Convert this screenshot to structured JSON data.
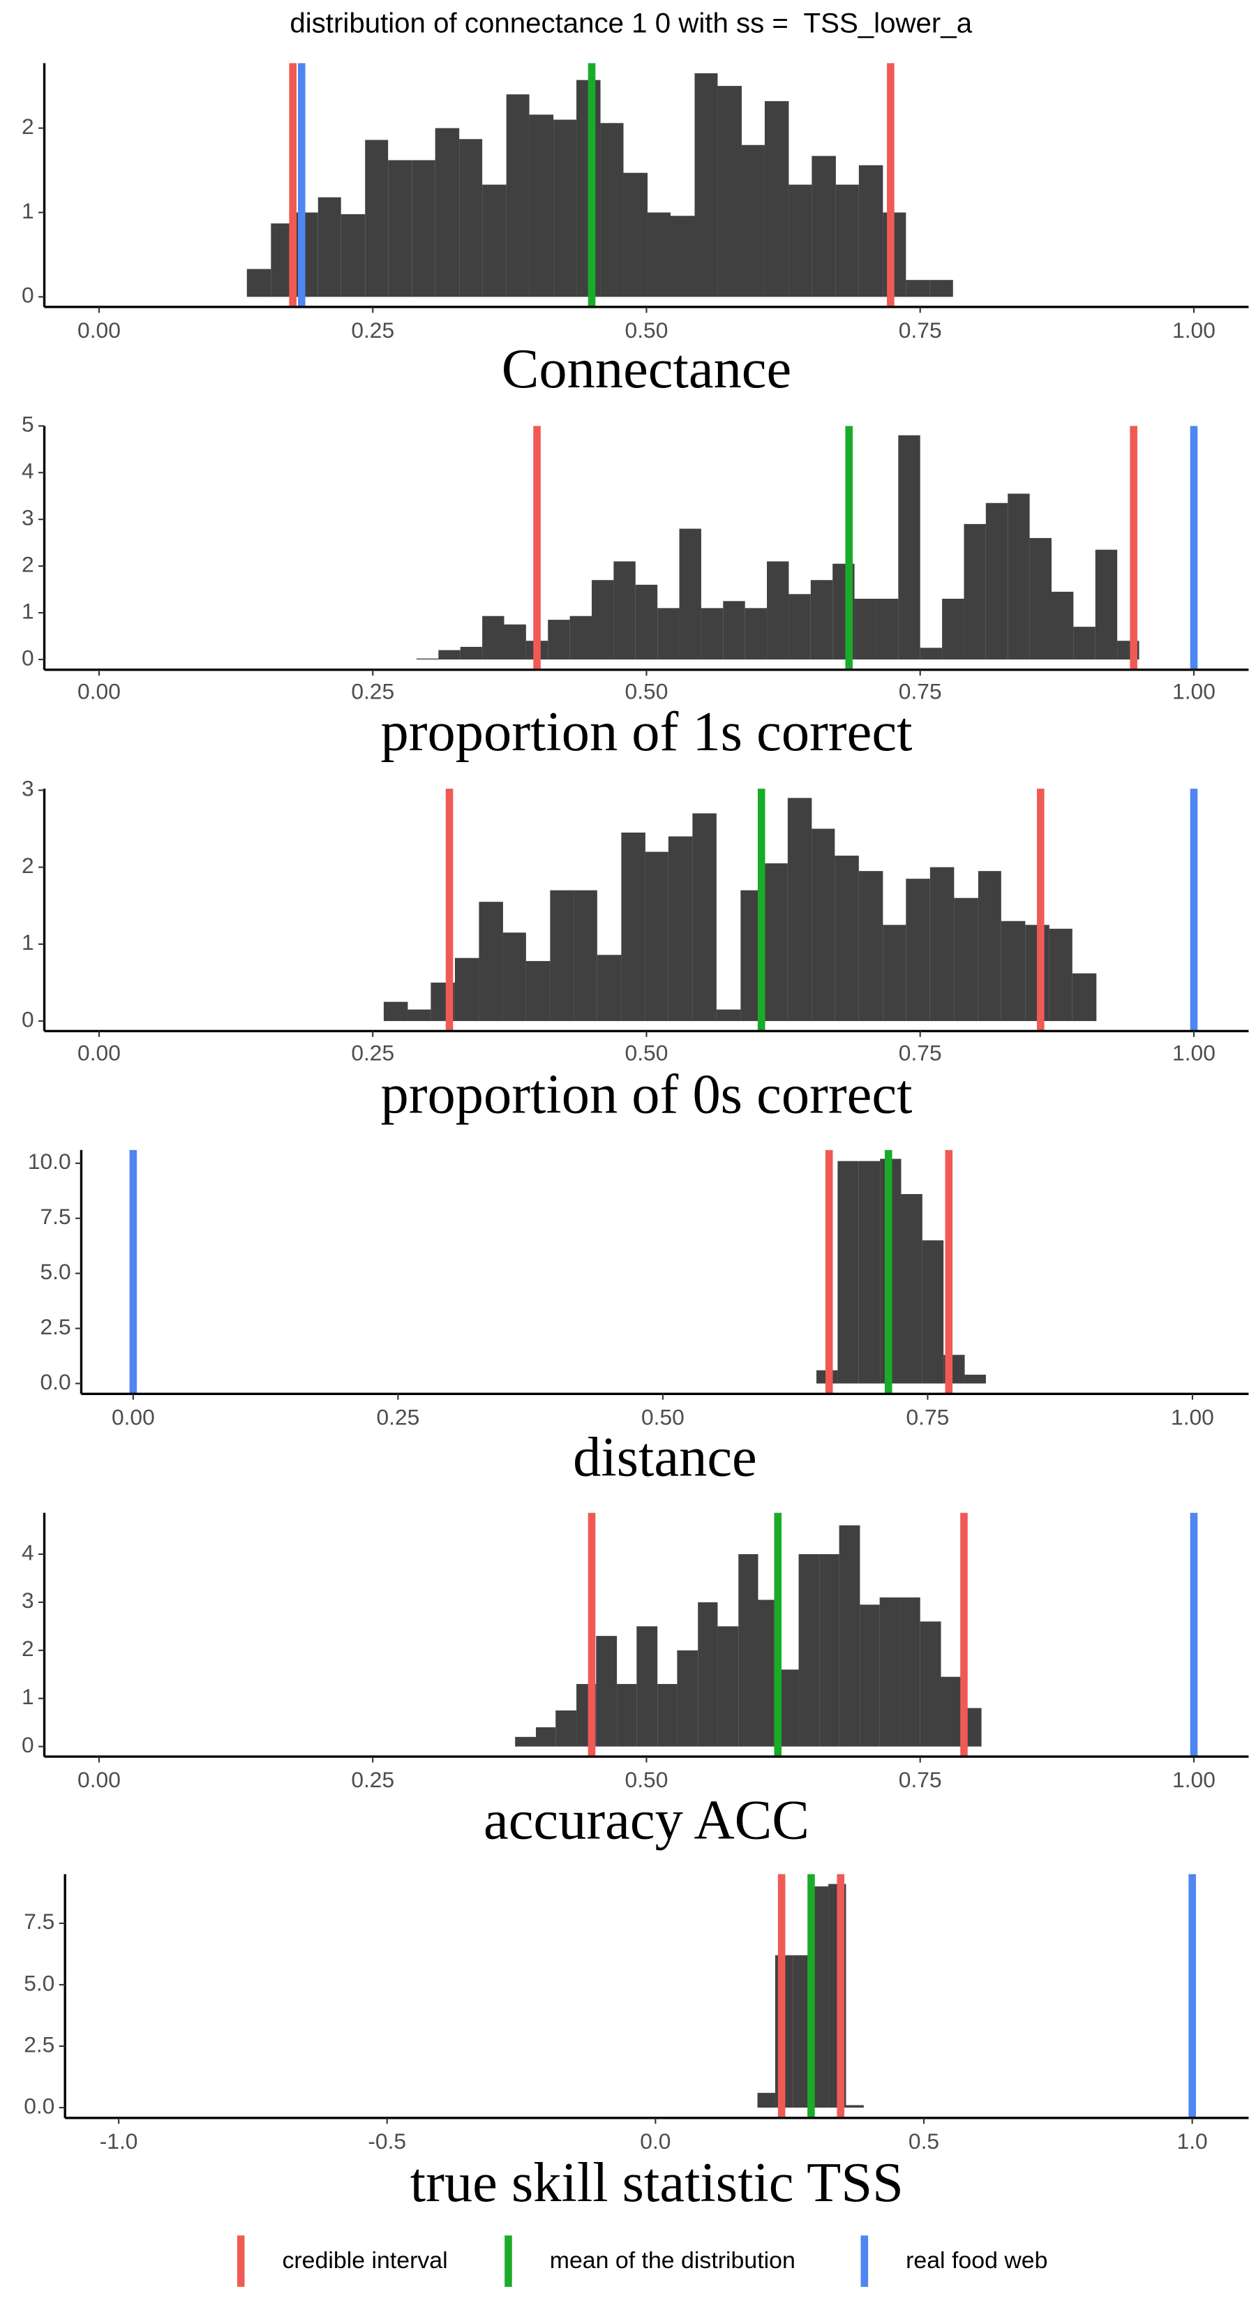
{
  "title": "distribution of connectance 1 0 with ss =  TSS_lower_a",
  "chart_data": [
    {
      "type": "histogram",
      "xlabel": "Connectance",
      "bins": [
        0.135,
        0.157,
        0.178,
        0.2,
        0.221,
        0.243,
        0.264,
        0.286,
        0.307,
        0.329,
        0.35,
        0.372,
        0.393,
        0.415,
        0.436,
        0.458,
        0.479,
        0.501,
        0.522,
        0.544,
        0.565,
        0.587,
        0.608,
        0.63,
        0.651,
        0.673,
        0.694,
        0.716,
        0.737,
        0.759,
        0.78
      ],
      "values": [
        0.33,
        0.87,
        1.0,
        1.18,
        0.98,
        1.86,
        1.62,
        1.62,
        2.0,
        1.87,
        1.33,
        2.4,
        2.16,
        2.1,
        2.57,
        2.06,
        1.47,
        1.0,
        0.96,
        2.65,
        2.5,
        1.8,
        2.32,
        1.33,
        1.67,
        1.33,
        1.56,
        1.0,
        0.2,
        0.2
      ],
      "color": "#404040",
      "xlim": [
        -0.05,
        1.05
      ],
      "ylim": [
        -0.12,
        2.77
      ],
      "xticks": [
        {
          "value": 0,
          "label": "0.00"
        },
        {
          "value": 0.25,
          "label": "0.25"
        },
        {
          "value": 0.5,
          "label": "0.50"
        },
        {
          "value": 0.75,
          "label": "0.75"
        },
        {
          "value": 1,
          "label": "1.00"
        }
      ],
      "yticks": [
        0,
        1,
        2
      ],
      "series": [
        {
          "name": "credible interval",
          "color": "#f05a55",
          "values": [
            0.177,
            0.723
          ]
        },
        {
          "name": "mean of the distribution",
          "color": "#1aab2a",
          "values": [
            0.45
          ]
        },
        {
          "name": "real food web",
          "color": "#4f86f0",
          "values": [
            0.185
          ]
        }
      ]
    },
    {
      "type": "histogram",
      "xlabel": "proportion of 1s correct",
      "bins": [
        0.29,
        0.31,
        0.33,
        0.35,
        0.37,
        0.39,
        0.41,
        0.43,
        0.45,
        0.47,
        0.49,
        0.51,
        0.53,
        0.55,
        0.57,
        0.59,
        0.61,
        0.63,
        0.65,
        0.67,
        0.69,
        0.71,
        0.73,
        0.75,
        0.77,
        0.79,
        0.81,
        0.83,
        0.85,
        0.87,
        0.89,
        0.91,
        0.93,
        0.95
      ],
      "values": [
        0.02,
        0.2,
        0.27,
        0.93,
        0.75,
        0.4,
        0.85,
        0.93,
        1.7,
        2.1,
        1.6,
        1.1,
        2.8,
        1.1,
        1.25,
        1.1,
        2.1,
        1.4,
        1.7,
        2.05,
        1.3,
        1.3,
        4.8,
        0.25,
        1.3,
        2.9,
        3.35,
        3.55,
        2.6,
        1.45,
        0.7,
        2.35,
        0.4
      ],
      "color": "#404040",
      "xlim": [
        -0.05,
        1.05
      ],
      "ylim": [
        -0.22,
        5.0
      ],
      "xticks": [
        {
          "value": 0,
          "label": "0.00"
        },
        {
          "value": 0.25,
          "label": "0.25"
        },
        {
          "value": 0.5,
          "label": "0.50"
        },
        {
          "value": 0.75,
          "label": "0.75"
        },
        {
          "value": 1,
          "label": "1.00"
        }
      ],
      "yticks": [
        0,
        1,
        2,
        3,
        4,
        5
      ],
      "series": [
        {
          "name": "credible interval",
          "color": "#f05a55",
          "values": [
            0.4,
            0.945
          ]
        },
        {
          "name": "mean of the distribution",
          "color": "#1aab2a",
          "values": [
            0.685
          ]
        },
        {
          "name": "real food web",
          "color": "#4f86f0",
          "values": [
            1.0
          ]
        }
      ]
    },
    {
      "type": "histogram",
      "xlabel": "proportion of 0s correct",
      "bins": [
        0.26,
        0.282,
        0.303,
        0.325,
        0.347,
        0.369,
        0.39,
        0.412,
        0.434,
        0.455,
        0.477,
        0.499,
        0.52,
        0.542,
        0.564,
        0.586,
        0.607,
        0.629,
        0.651,
        0.672,
        0.694,
        0.716,
        0.737,
        0.759,
        0.781,
        0.803,
        0.824,
        0.846,
        0.868,
        0.889,
        0.911
      ],
      "values": [
        0.25,
        0.15,
        0.5,
        0.82,
        1.55,
        1.15,
        0.78,
        1.7,
        1.7,
        0.86,
        2.45,
        2.2,
        2.4,
        2.7,
        0.15,
        1.7,
        2.05,
        2.9,
        2.5,
        2.15,
        1.95,
        1.25,
        1.85,
        2.0,
        1.6,
        1.95,
        1.3,
        1.25,
        1.2,
        0.62
      ],
      "color": "#404040",
      "xlim": [
        -0.05,
        1.05
      ],
      "ylim": [
        -0.13,
        3.02
      ],
      "xticks": [
        {
          "value": 0,
          "label": "0.00"
        },
        {
          "value": 0.25,
          "label": "0.25"
        },
        {
          "value": 0.5,
          "label": "0.50"
        },
        {
          "value": 0.75,
          "label": "0.75"
        },
        {
          "value": 1,
          "label": "1.00"
        }
      ],
      "yticks": [
        0,
        1,
        2,
        3
      ],
      "series": [
        {
          "name": "credible interval",
          "color": "#f05a55",
          "values": [
            0.32,
            0.86
          ]
        },
        {
          "name": "mean of the distribution",
          "color": "#1aab2a",
          "values": [
            0.605
          ]
        },
        {
          "name": "real food web",
          "color": "#4f86f0",
          "values": [
            1.0
          ]
        }
      ]
    },
    {
      "type": "histogram",
      "xlabel": "distance",
      "bins": [
        0.645,
        0.665,
        0.685,
        0.705,
        0.725,
        0.745,
        0.765,
        0.785,
        0.805
      ],
      "values": [
        0.6,
        10.1,
        10.1,
        10.2,
        8.6,
        6.5,
        1.3,
        0.4
      ],
      "color": "#404040",
      "xlim": [
        -0.049,
        1.053
      ],
      "ylim": [
        -0.47,
        10.6
      ],
      "xticks": [
        {
          "value": 0,
          "label": "0.00"
        },
        {
          "value": 0.25,
          "label": "0.25"
        },
        {
          "value": 0.5,
          "label": "0.50"
        },
        {
          "value": 0.75,
          "label": "0.75"
        },
        {
          "value": 1,
          "label": "1.00"
        }
      ],
      "yticks": [
        {
          "value": 0,
          "label": "0.0"
        },
        {
          "value": 2.5,
          "label": "2.5"
        },
        {
          "value": 5,
          "label": "5.0"
        },
        {
          "value": 7.5,
          "label": "7.5"
        },
        {
          "value": 10,
          "label": "10.0"
        }
      ],
      "series": [
        {
          "name": "credible interval",
          "color": "#f05a55",
          "values": [
            0.657,
            0.77
          ]
        },
        {
          "name": "mean of the distribution",
          "color": "#1aab2a",
          "values": [
            0.713
          ]
        },
        {
          "name": "real food web",
          "color": "#4f86f0",
          "values": [
            0.0
          ]
        }
      ]
    },
    {
      "type": "histogram",
      "xlabel": "accuracy ACC",
      "bins": [
        0.38,
        0.399,
        0.417,
        0.436,
        0.454,
        0.473,
        0.491,
        0.51,
        0.528,
        0.547,
        0.565,
        0.584,
        0.602,
        0.621,
        0.639,
        0.658,
        0.676,
        0.695,
        0.713,
        0.732,
        0.75,
        0.769,
        0.787,
        0.806
      ],
      "values": [
        0.2,
        0.4,
        0.75,
        1.3,
        2.3,
        1.3,
        2.5,
        1.3,
        2.0,
        3.0,
        2.5,
        4.0,
        3.05,
        1.6,
        4.0,
        4.0,
        4.6,
        2.95,
        3.1,
        3.1,
        2.6,
        1.45,
        0.8
      ],
      "color": "#404040",
      "xlim": [
        -0.05,
        1.05
      ],
      "ylim": [
        -0.21,
        4.86
      ],
      "xticks": [
        {
          "value": 0,
          "label": "0.00"
        },
        {
          "value": 0.25,
          "label": "0.25"
        },
        {
          "value": 0.5,
          "label": "0.50"
        },
        {
          "value": 0.75,
          "label": "0.75"
        },
        {
          "value": 1,
          "label": "1.00"
        }
      ],
      "yticks": [
        0,
        1,
        2,
        3,
        4
      ],
      "series": [
        {
          "name": "credible interval",
          "color": "#f05a55",
          "values": [
            0.45,
            0.79
          ]
        },
        {
          "name": "mean of the distribution",
          "color": "#1aab2a",
          "values": [
            0.62
          ]
        },
        {
          "name": "real food web",
          "color": "#4f86f0",
          "values": [
            1.0
          ]
        }
      ]
    },
    {
      "type": "histogram",
      "xlabel": "true skill statistic TSS",
      "bins": [
        0.19,
        0.223,
        0.256,
        0.289,
        0.322,
        0.355,
        0.388
      ],
      "values": [
        0.6,
        6.2,
        6.2,
        9.0,
        9.1,
        0.1
      ],
      "color": "#404040",
      "xlim": [
        -1.1,
        1.105
      ],
      "ylim": [
        -0.42,
        9.5
      ],
      "xticks": [
        {
          "value": -1,
          "label": "-1.0"
        },
        {
          "value": -0.5,
          "label": "-0.5"
        },
        {
          "value": 0,
          "label": "0.0"
        },
        {
          "value": 0.5,
          "label": "0.5"
        },
        {
          "value": 1,
          "label": "1.0"
        }
      ],
      "yticks": [
        {
          "value": 0,
          "label": "0.0"
        },
        {
          "value": 2.5,
          "label": "2.5"
        },
        {
          "value": 5,
          "label": "5.0"
        },
        {
          "value": 7.5,
          "label": "7.5"
        }
      ],
      "series": [
        {
          "name": "credible interval",
          "color": "#f05a55",
          "values": [
            0.235,
            0.345
          ]
        },
        {
          "name": "mean of the distribution",
          "color": "#1aab2a",
          "values": [
            0.29
          ]
        },
        {
          "name": "real food web",
          "color": "#4f86f0",
          "values": [
            1.0
          ]
        }
      ]
    }
  ]
}
